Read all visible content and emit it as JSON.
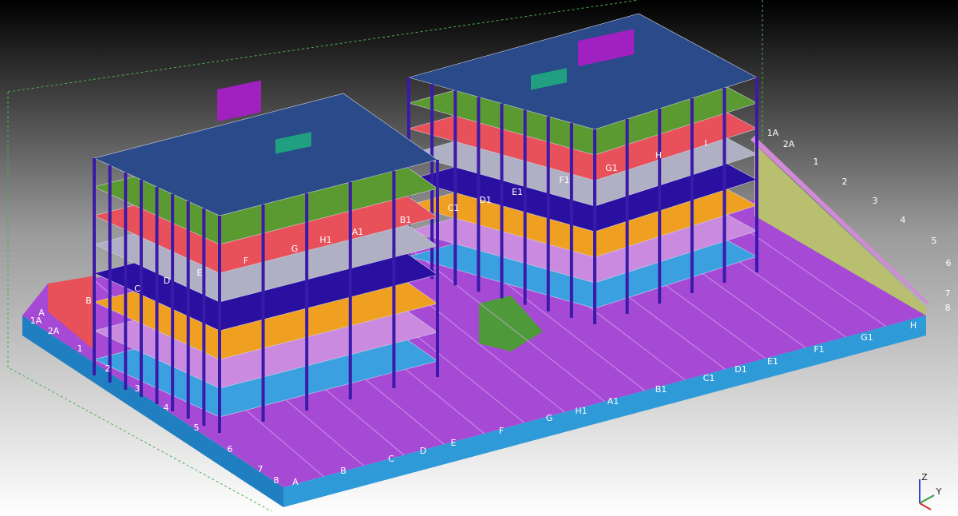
{
  "grid_labels": {
    "front": [
      "A",
      "B",
      "C",
      "D",
      "E",
      "F",
      "G",
      "H1",
      "A1",
      "B1",
      "C1",
      "D1",
      "E1",
      "F1",
      "G1",
      "H"
    ],
    "left": [
      "1",
      "2",
      "3",
      "4",
      "5",
      "6",
      "7",
      "8"
    ],
    "left_back": [
      "A",
      "1A",
      "2A",
      "B"
    ],
    "building_1": [
      "C",
      "D",
      "E",
      "F",
      "G",
      "H1",
      "A1",
      "B1"
    ],
    "building_2": [
      "C1",
      "D1",
      "E1",
      "F1",
      "G1",
      "H",
      "I"
    ],
    "right": [
      "1A",
      "2A",
      "1",
      "2",
      "3",
      "4",
      "5",
      "6",
      "7",
      "8"
    ]
  },
  "axis_triad": [
    "Z",
    "Y"
  ]
}
